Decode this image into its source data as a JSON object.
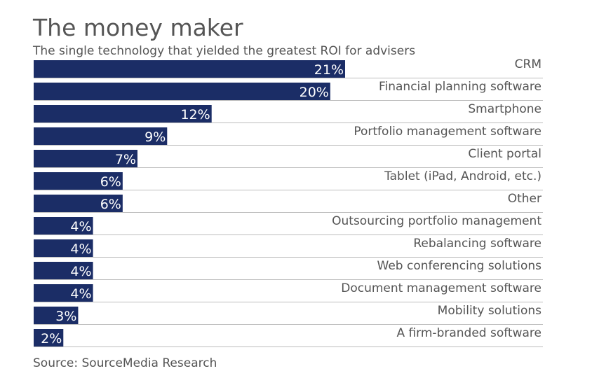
{
  "chart_data": {
    "type": "bar",
    "orientation": "horizontal",
    "title": "The money maker",
    "subtitle": "The single technology that yielded the greatest ROI for advisers",
    "source": "Source: SourceMedia Research",
    "categories": [
      "CRM",
      "Financial planning software",
      "Smartphone",
      "Portfolio management software",
      "Client portal",
      "Tablet (iPad, Android, etc.)",
      "Other",
      "Outsourcing portfolio management",
      "Rebalancing software",
      "Web conferencing solutions",
      "Document management software",
      "Mobility solutions",
      "A firm-branded software"
    ],
    "values": [
      21,
      20,
      12,
      9,
      7,
      6,
      6,
      4,
      4,
      4,
      4,
      3,
      2
    ],
    "value_labels": [
      "21%",
      "20%",
      "12%",
      "9%",
      "7%",
      "6%",
      "6%",
      "4%",
      "4%",
      "4%",
      "4%",
      "3%",
      "2%"
    ],
    "unit": "%",
    "xlim": [
      0,
      21
    ],
    "bar_color": "#1b2d66",
    "grid": false,
    "legend": "none"
  }
}
